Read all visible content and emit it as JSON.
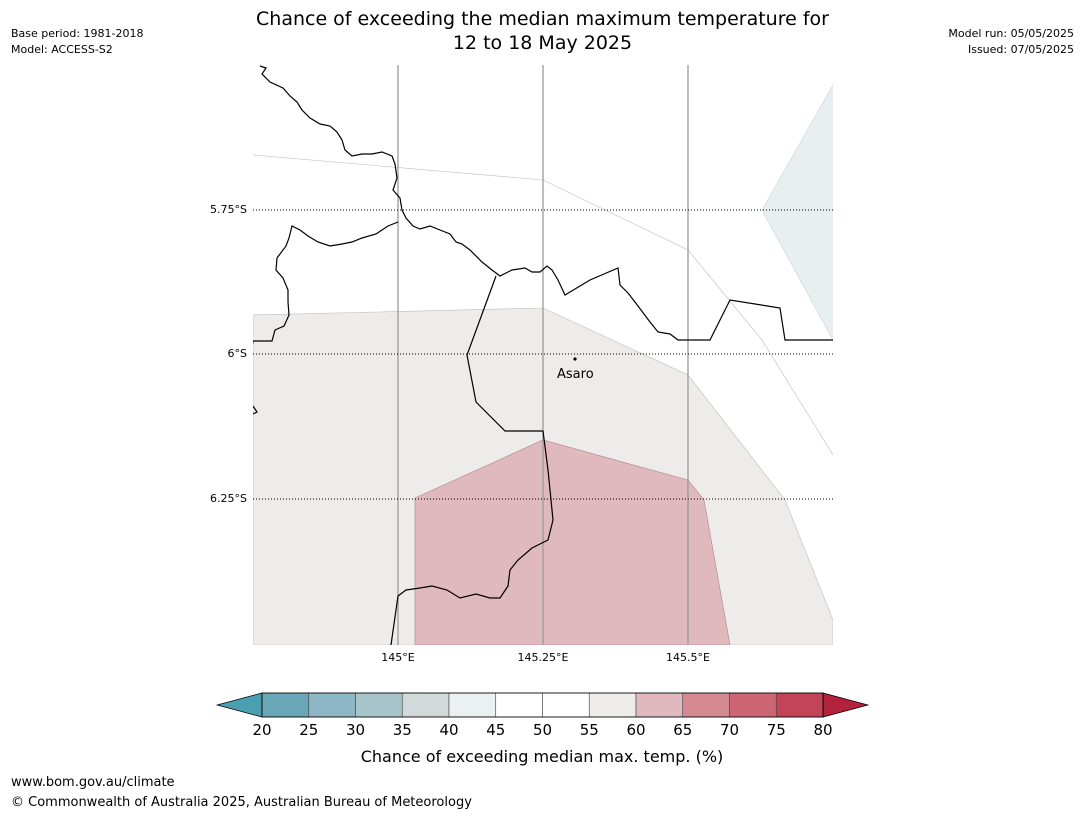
{
  "header": {
    "base_period": "Base period: 1981-2018",
    "model": "Model: ACCESS-S2",
    "model_run": "Model run: 05/05/2025",
    "issued": "Issued: 07/05/2025",
    "title_line1": "Chance of exceeding the median maximum temperature for",
    "title_line2": "12 to 18 May 2025"
  },
  "map": {
    "lat_labels": [
      "5.75°S",
      "6°S",
      "6.25°S"
    ],
    "lon_labels": [
      "145°E",
      "145.25°E",
      "145.5°E"
    ],
    "place": {
      "name": "Asaro"
    }
  },
  "colorbar": {
    "ticks": [
      "20",
      "25",
      "30",
      "35",
      "40",
      "45",
      "50",
      "55",
      "60",
      "65",
      "70",
      "75",
      "80"
    ],
    "colors": [
      "#6aa8b8",
      "#8cb6c3",
      "#a6c4ca",
      "#d2d9db",
      "#ebf0f2",
      "#ffffff",
      "#ffffff",
      "#efedeb",
      "#e0b9be",
      "#d58a92",
      "#cc6672",
      "#c14556"
    ],
    "low_extend_color": "#4aa0b0",
    "high_extend_color": "#b3213b",
    "label": "Chance of exceeding median max. temp. (%)"
  },
  "footer": {
    "url": "www.bom.gov.au/climate",
    "copyright": "© Commonwealth of Australia 2025, Australian Bureau of Meteorology"
  }
}
